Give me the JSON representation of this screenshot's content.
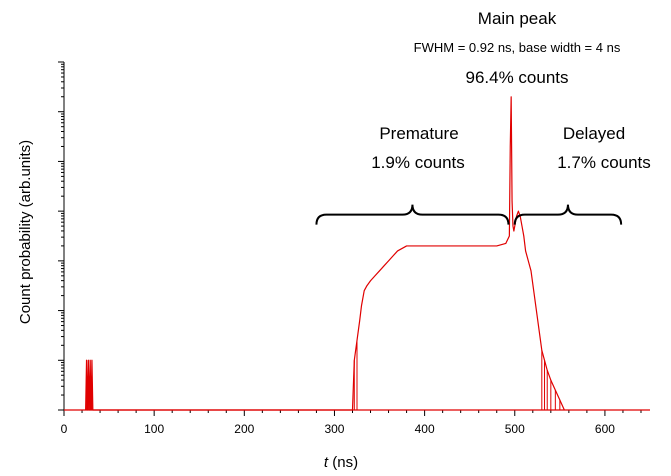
{
  "chart_data": {
    "type": "line",
    "xlabel_var": "t",
    "xlabel_unit": " (ns)",
    "ylabel": "Count probability (arb.units)",
    "xlim": [
      0,
      650
    ],
    "x_ticks": [
      0,
      100,
      200,
      300,
      400,
      500,
      600
    ],
    "y_scale": "log",
    "ylim_decades": 7,
    "y_tick_labels": "none",
    "grid": false,
    "color": "#e00000",
    "series": [
      {
        "comment_free_points": true,
        "x": [
          24,
          25,
          26,
          27,
          28,
          29,
          30,
          31,
          32,
          33,
          320,
          322,
          325,
          328,
          330,
          333,
          336,
          340,
          345,
          350,
          355,
          360,
          365,
          370,
          375,
          380,
          390,
          400,
          410,
          420,
          430,
          440,
          450,
          460,
          470,
          480,
          490,
          494,
          495,
          496,
          497,
          498,
          499,
          500,
          502,
          504,
          506,
          508,
          510,
          512,
          515,
          518,
          521,
          524,
          527,
          530,
          533,
          536,
          540,
          545,
          550,
          555
        ],
        "y": [
          0,
          1,
          0,
          1,
          0,
          1,
          0,
          1,
          0,
          0,
          0,
          1,
          1.4,
          1.8,
          2.1,
          2.4,
          2.5,
          2.6,
          2.7,
          2.8,
          2.9,
          3.0,
          3.1,
          3.2,
          3.25,
          3.3,
          3.3,
          3.3,
          3.3,
          3.3,
          3.3,
          3.3,
          3.3,
          3.3,
          3.3,
          3.3,
          3.35,
          3.5,
          5.3,
          6.3,
          4.2,
          3.7,
          3.6,
          3.7,
          3.9,
          4.0,
          3.9,
          3.7,
          3.5,
          3.2,
          3.0,
          2.8,
          2.4,
          2.0,
          1.6,
          1.2,
          1.0,
          0.8,
          0.6,
          0.4,
          0.2,
          0
        ]
      }
    ],
    "annotations": {
      "main_peak_title": "Main peak",
      "main_peak_detail": "FWHM = 0.92 ns, base width = 4 ns",
      "main_peak_counts": "96.4% counts",
      "premature_title": "Premature",
      "premature_counts": "1.9% counts",
      "delayed_title": "Delayed",
      "delayed_counts": "1.7% counts"
    },
    "brackets": [
      {
        "name": "premature",
        "x_start": 280,
        "x_end": 493
      },
      {
        "name": "delayed",
        "x_start": 500,
        "x_end": 618
      }
    ]
  }
}
